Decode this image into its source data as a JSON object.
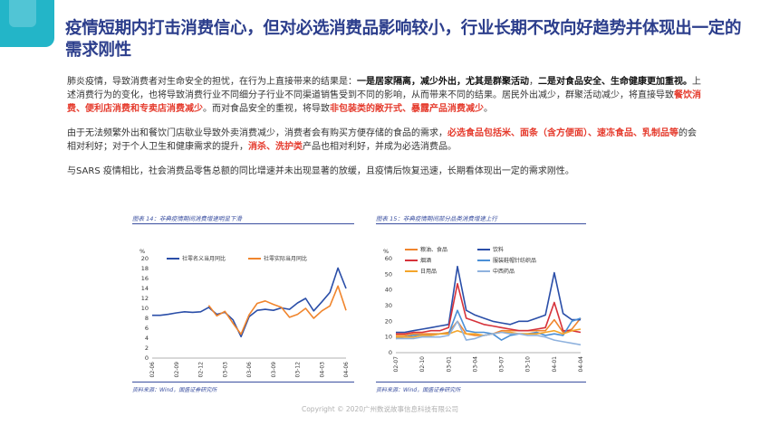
{
  "title": "疫情短期内打击消费信心，但对必选消费品影响较小，行业长期不改向好趋势并体现出一定的需求刚性",
  "paragraphs": {
    "p1": [
      {
        "t": "肺炎疫情，导致消费者对生命安全的担忧，在行为上直接带来的结果是：",
        "s": "n"
      },
      {
        "t": "一是居家隔离，减少外出，尤其是群聚活动",
        "s": "b"
      },
      {
        "t": "，",
        "s": "n"
      },
      {
        "t": "二是对食品安全、生命健康更加重视。",
        "s": "b"
      },
      {
        "t": "上述消费行为的变化，也将导致消费行业不同细分子行业不同渠道销售受到不同的影响，从而带来不同的结果。居民外出减少，群聚活动减少，将直接导致",
        "s": "n"
      },
      {
        "t": "餐饮消费、便利店消费和专卖店消费减少",
        "s": "r"
      },
      {
        "t": "。而对食品安全的重视，将导致",
        "s": "n"
      },
      {
        "t": "非包装类的敞开式、暴露产品消费减少",
        "s": "r"
      },
      {
        "t": "。",
        "s": "n"
      }
    ],
    "p2": [
      {
        "t": "由于无法频繁外出和餐饮门店歇业导致外卖消费减少，消费者会有购买方便存储的食品的需求，",
        "s": "n"
      },
      {
        "t": "必选食品包括米、面条（含方便面）、速冻食品、乳制品等",
        "s": "r"
      },
      {
        "t": "的会相对利好；对于个人卫生和健康需求的提升，",
        "s": "n"
      },
      {
        "t": "消杀、洗护类",
        "s": "r"
      },
      {
        "t": "产品也相对利好，并成为必选消费品。",
        "s": "n"
      }
    ],
    "p3": [
      {
        "t": "与SARS 疫情相比，社会消费品零售总额的同比增速并未出现显著的放缓，且疫情后恢复迅速，长期看体现出一定的需求刚性。",
        "s": "n"
      }
    ]
  },
  "figures": [
    {
      "caption": "图表 14：非典疫情期间消费增速明显下滑",
      "source": "资料来源：Wind，国盛证券研究所"
    },
    {
      "caption": "图表 15：非典疫情期间部分品类消费增速上行",
      "source": "资料来源：Wind，国盛证券研究所"
    }
  ],
  "chart_data": [
    {
      "type": "line",
      "title": "",
      "ylabel": "%",
      "ylim": [
        0,
        20
      ],
      "yticks": [
        0,
        2,
        4,
        6,
        8,
        10,
        12,
        14,
        16,
        18,
        20
      ],
      "xticks": [
        "02-06",
        "02-09",
        "02-12",
        "03-03",
        "03-06",
        "03-09",
        "03-12",
        "04-03",
        "04-06"
      ],
      "legend_position": "top",
      "series": [
        {
          "name": "社零名义当月同比",
          "color": "#2a4ea8",
          "values": [
            8.6,
            8.6,
            8.8,
            9.1,
            9.3,
            9.2,
            9.3,
            10.2,
            8.8,
            9.2,
            7.7,
            4.3,
            8.3,
            9.6,
            9.8,
            9.6,
            10.1,
            9.8,
            11.1,
            12.0,
            9.5,
            11.3,
            13.2,
            18.1,
            14.0
          ]
        },
        {
          "name": "社零实际当月同比",
          "color": "#f0852d",
          "values": [
            null,
            null,
            null,
            null,
            null,
            null,
            null,
            10.6,
            8.5,
            9.4,
            7.0,
            4.8,
            8.7,
            11.0,
            11.5,
            10.8,
            10.2,
            8.2,
            8.8,
            10.0,
            8.0,
            9.5,
            10.5,
            14.5,
            9.6
          ]
        }
      ]
    },
    {
      "type": "line",
      "title": "",
      "ylabel": "%",
      "ylim": [
        0,
        60
      ],
      "yticks": [
        0,
        10,
        20,
        30,
        40,
        50,
        60
      ],
      "xticks": [
        "02-07",
        "02-10",
        "03-01",
        "03-04",
        "03-07",
        "03-10",
        "04-01",
        "04-04"
      ],
      "legend_position": "top",
      "series": [
        {
          "name": "粮油、食品",
          "color": "#f0852d",
          "values": [
            11,
            11,
            12,
            12,
            12,
            12,
            13,
            20,
            12,
            11,
            11,
            12,
            14,
            14,
            14,
            14,
            14,
            14,
            21,
            13,
            15,
            22
          ]
        },
        {
          "name": "饮料",
          "color": "#2a4ea8",
          "values": [
            13,
            13,
            14,
            15,
            16,
            17,
            18,
            55,
            27,
            24,
            22,
            20,
            19,
            18,
            20,
            20,
            22,
            24,
            51,
            25,
            21,
            21
          ]
        },
        {
          "name": "烟酒",
          "color": "#d6323a",
          "values": [
            12,
            12,
            13,
            13,
            14,
            14,
            16,
            44,
            22,
            20,
            18,
            17,
            16,
            15,
            14,
            14,
            15,
            16,
            32,
            14,
            14,
            13
          ]
        },
        {
          "name": "服装鞋帽针纺织品",
          "color": "#4a8fd6",
          "values": [
            9,
            10,
            11,
            11,
            11,
            12,
            12,
            27,
            14,
            13,
            13,
            12,
            8,
            11,
            12,
            12,
            13,
            11,
            12,
            11,
            20,
            22
          ]
        },
        {
          "name": "日用品",
          "color": "#f4a52a",
          "values": [
            10,
            10,
            10,
            11,
            11,
            12,
            12,
            14,
            12,
            12,
            11,
            12,
            13,
            13,
            12,
            12,
            12,
            13,
            14,
            12,
            14,
            15
          ]
        },
        {
          "name": "中西药品",
          "color": "#8fb2de",
          "values": [
            9,
            9,
            9,
            10,
            10,
            10,
            11,
            20,
            8,
            9,
            11,
            12,
            13,
            12,
            12,
            11,
            11,
            10,
            8,
            7,
            6,
            5
          ]
        }
      ]
    }
  ],
  "copyright": "Copyright © 2020广州数说故事信息科技有限公司",
  "colors": {
    "accent": "#2c3e8c",
    "highlight": "#e53a2c",
    "corner": "#23b5c8"
  }
}
